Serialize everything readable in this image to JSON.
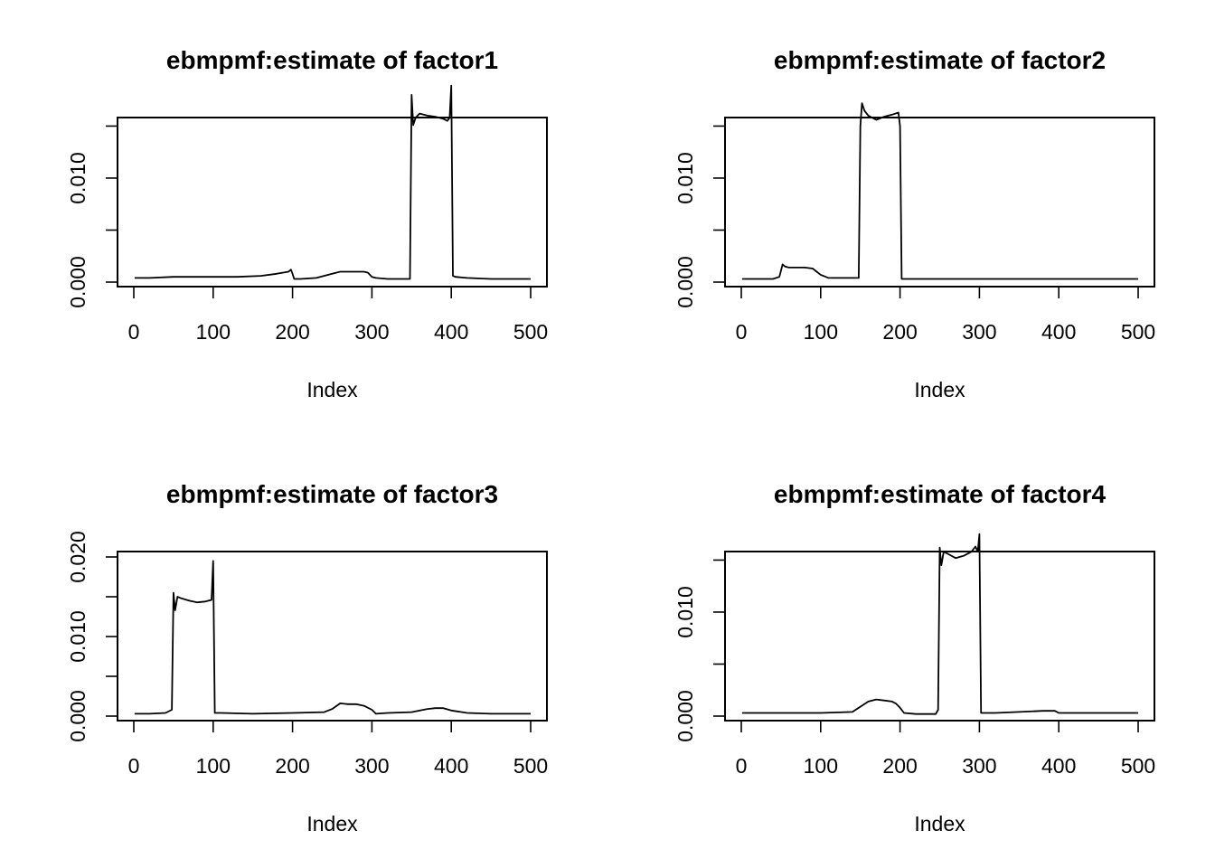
{
  "chart_data": [
    {
      "type": "line",
      "title": "ebmpmf:estimate of factor1",
      "xlabel": "Index",
      "ylabel": "",
      "xlim": [
        0,
        500
      ],
      "ylim": [
        0,
        0.0153
      ],
      "xticks": [
        0,
        100,
        200,
        300,
        400,
        500
      ],
      "yticks": [
        0,
        0.005,
        0.01,
        0.015
      ],
      "ytick_labels": [
        "0.000",
        "",
        "0.010",
        ""
      ],
      "grid": false,
      "series": [
        {
          "x": [
            1,
            20,
            50,
            100,
            130,
            160,
            180,
            195,
            198,
            200,
            202,
            210,
            230,
            250,
            260,
            270,
            280,
            290,
            295,
            300,
            305,
            320,
            348,
            350,
            352,
            355,
            360,
            370,
            380,
            390,
            395,
            398,
            400,
            402,
            405,
            420,
            450,
            500
          ],
          "y": [
            0.0004,
            0.0004,
            0.0005,
            0.0005,
            0.0005,
            0.0006,
            0.0008,
            0.001,
            0.0012,
            0.0008,
            0.0003,
            0.0003,
            0.0004,
            0.0008,
            0.001,
            0.001,
            0.001,
            0.001,
            0.0009,
            0.0005,
            0.0004,
            0.0003,
            0.0003,
            0.018,
            0.0151,
            0.0158,
            0.0162,
            0.016,
            0.0159,
            0.0157,
            0.0155,
            0.0158,
            0.0189,
            0.0006,
            0.0005,
            0.0004,
            0.0003,
            0.0003
          ]
        }
      ]
    },
    {
      "type": "line",
      "title": "ebmpmf:estimate of factor2",
      "xlabel": "Index",
      "ylabel": "",
      "xlim": [
        0,
        500
      ],
      "ylim": [
        0,
        0.0153
      ],
      "xticks": [
        0,
        100,
        200,
        300,
        400,
        500
      ],
      "yticks": [
        0,
        0.005,
        0.01,
        0.015
      ],
      "ytick_labels": [
        "0.000",
        "",
        "0.010",
        ""
      ],
      "grid": false,
      "series": [
        {
          "x": [
            1,
            20,
            40,
            48,
            52,
            55,
            60,
            80,
            90,
            95,
            100,
            110,
            130,
            148,
            150,
            152,
            155,
            160,
            170,
            180,
            190,
            198,
            200,
            202,
            220,
            300,
            400,
            500
          ],
          "y": [
            0.0003,
            0.0003,
            0.0003,
            0.0005,
            0.0017,
            0.0015,
            0.0014,
            0.0014,
            0.0013,
            0.001,
            0.0007,
            0.0004,
            0.0004,
            0.0004,
            0.015,
            0.0172,
            0.0165,
            0.016,
            0.0156,
            0.0159,
            0.0161,
            0.0163,
            0.015,
            0.0003,
            0.0003,
            0.0003,
            0.0003,
            0.0003
          ]
        }
      ]
    },
    {
      "type": "line",
      "title": "ebmpmf:estimate of factor3",
      "xlabel": "Index",
      "ylabel": "",
      "xlim": [
        0,
        500
      ],
      "ylim": [
        0,
        0.02
      ],
      "xticks": [
        0,
        100,
        200,
        300,
        400,
        500
      ],
      "yticks": [
        0,
        0.005,
        0.01,
        0.015,
        0.02
      ],
      "ytick_labels": [
        "0.000",
        "",
        "0.010",
        "",
        "0.020"
      ],
      "grid": false,
      "series": [
        {
          "x": [
            1,
            20,
            40,
            48,
            50,
            52,
            55,
            60,
            70,
            80,
            90,
            98,
            100,
            102,
            110,
            150,
            200,
            240,
            250,
            260,
            270,
            280,
            290,
            300,
            305,
            320,
            350,
            370,
            380,
            390,
            400,
            420,
            450,
            500
          ],
          "y": [
            0.0003,
            0.0003,
            0.0004,
            0.0008,
            0.0155,
            0.0133,
            0.015,
            0.0148,
            0.0145,
            0.0143,
            0.0144,
            0.0146,
            0.0195,
            0.0004,
            0.0004,
            0.0003,
            0.0004,
            0.0005,
            0.0009,
            0.0016,
            0.0015,
            0.0015,
            0.0013,
            0.0008,
            0.0003,
            0.0004,
            0.0005,
            0.0009,
            0.001,
            0.001,
            0.0007,
            0.0004,
            0.0003,
            0.0003
          ]
        }
      ]
    },
    {
      "type": "line",
      "title": "ebmpmf:estimate of factor4",
      "xlabel": "Index",
      "ylabel": "",
      "xlim": [
        0,
        500
      ],
      "ylim": [
        0,
        0.0153
      ],
      "xticks": [
        0,
        100,
        200,
        300,
        400,
        500
      ],
      "yticks": [
        0,
        0.005,
        0.01,
        0.015
      ],
      "ytick_labels": [
        "0.000",
        "",
        "0.010",
        ""
      ],
      "grid": false,
      "series": [
        {
          "x": [
            1,
            50,
            100,
            140,
            150,
            160,
            170,
            180,
            190,
            195,
            200,
            205,
            220,
            245,
            248,
            250,
            252,
            255,
            260,
            270,
            280,
            290,
            295,
            298,
            300,
            302,
            320,
            350,
            380,
            395,
            400,
            410,
            450,
            500
          ],
          "y": [
            0.0003,
            0.0003,
            0.0003,
            0.0004,
            0.0009,
            0.0014,
            0.0016,
            0.0015,
            0.0014,
            0.0012,
            0.0008,
            0.0003,
            0.0002,
            0.0002,
            0.0006,
            0.0162,
            0.0145,
            0.0158,
            0.0156,
            0.0152,
            0.0154,
            0.0158,
            0.0163,
            0.0158,
            0.0175,
            0.0003,
            0.0003,
            0.0004,
            0.0005,
            0.0005,
            0.0003,
            0.0003,
            0.0003,
            0.0003
          ]
        }
      ]
    }
  ]
}
